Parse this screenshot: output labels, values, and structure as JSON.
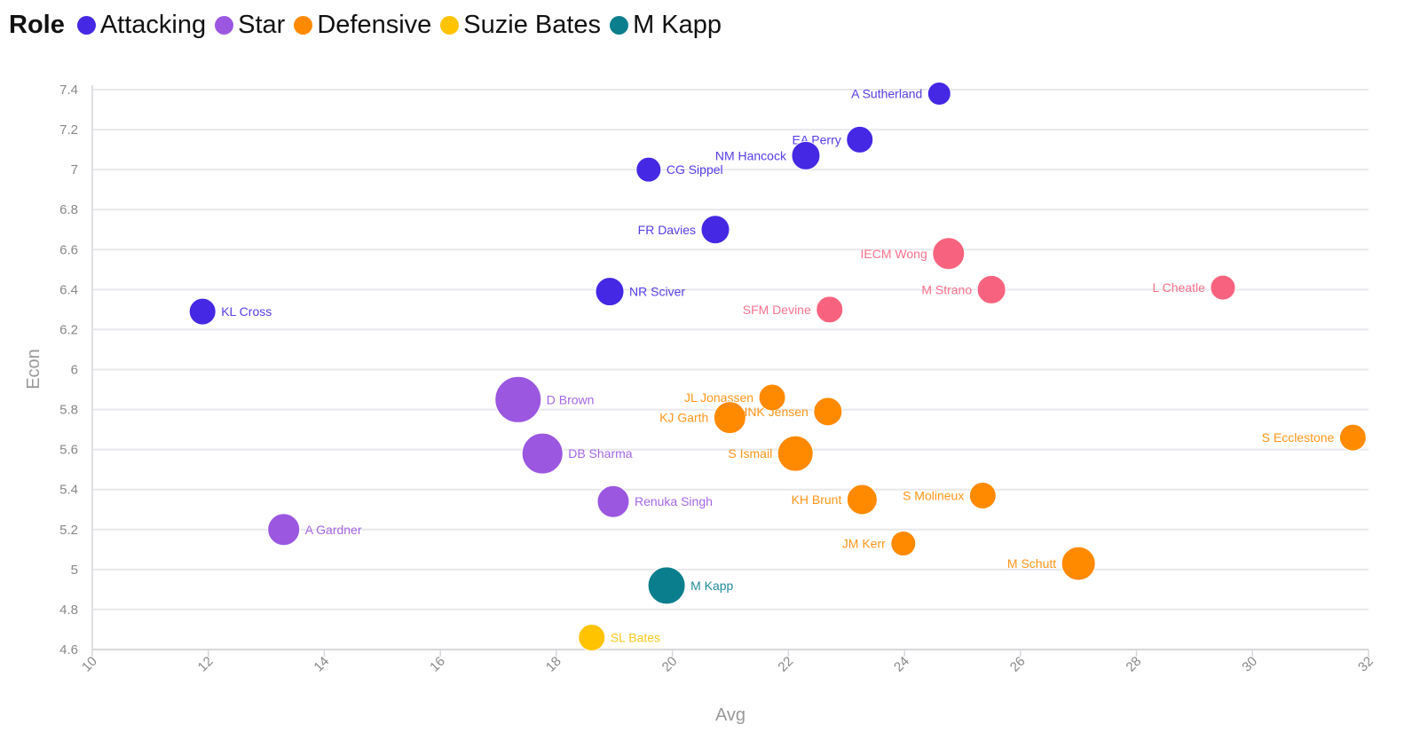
{
  "chart_data": {
    "type": "scatter",
    "title": "",
    "xlabel": "Avg",
    "ylabel": "Econ",
    "xlim": [
      10,
      32
    ],
    "ylim": [
      4.6,
      7.4
    ],
    "xticks": [
      "10",
      "12",
      "14",
      "16",
      "18",
      "20",
      "22",
      "24",
      "26",
      "28",
      "30",
      "32"
    ],
    "yticks": [
      "4.6",
      "4.8",
      "5",
      "5.2",
      "5.4",
      "5.6",
      "5.8",
      "6",
      "6.2",
      "6.4",
      "6.6",
      "6.8",
      "7",
      "7.2",
      "7.4"
    ],
    "grid": "horizontal",
    "legend": {
      "title": "Role",
      "placement": "top-left",
      "entries": [
        {
          "label": "Attacking",
          "color": "#4428e4"
        },
        {
          "label": "Star",
          "color": "#9b57e0"
        },
        {
          "label": "Defensive",
          "color": "#ff8a00"
        },
        {
          "label": "Suzie Bates",
          "color": "#ffc300"
        },
        {
          "label": "M Kapp",
          "color": "#0a7e8c"
        }
      ]
    },
    "other_color": "#f7637f",
    "points": [
      {
        "name": "A Sutherland",
        "x": 24.6,
        "y": 7.38,
        "role": "Attacking",
        "size": 13,
        "label_side": "left"
      },
      {
        "name": "EA Perry",
        "x": 23.23,
        "y": 7.15,
        "role": "Attacking",
        "size": 15,
        "label_side": "left"
      },
      {
        "name": "NM Hancock",
        "x": 22.3,
        "y": 7.07,
        "role": "Attacking",
        "size": 16,
        "label_side": "left"
      },
      {
        "name": "CG Sippel",
        "x": 19.59,
        "y": 7.0,
        "role": "Attacking",
        "size": 14,
        "label_side": "right"
      },
      {
        "name": "FR Davies",
        "x": 20.74,
        "y": 6.7,
        "role": "Attacking",
        "size": 16,
        "label_side": "left"
      },
      {
        "name": "NR Sciver",
        "x": 18.92,
        "y": 6.39,
        "role": "Attacking",
        "size": 16,
        "label_side": "right"
      },
      {
        "name": "KL Cross",
        "x": 11.9,
        "y": 6.29,
        "role": "Attacking",
        "size": 15,
        "label_side": "right"
      },
      {
        "name": "IECM Wong",
        "x": 24.76,
        "y": 6.58,
        "role": "Other",
        "size": 18,
        "label_side": "left"
      },
      {
        "name": "M Strano",
        "x": 25.5,
        "y": 6.4,
        "role": "Other",
        "size": 16,
        "label_side": "left"
      },
      {
        "name": "L Cheatle",
        "x": 29.49,
        "y": 6.41,
        "role": "Other",
        "size": 14,
        "label_side": "left"
      },
      {
        "name": "SFM Devine",
        "x": 22.71,
        "y": 6.3,
        "role": "Other",
        "size": 15,
        "label_side": "left"
      },
      {
        "name": "D Brown",
        "x": 17.34,
        "y": 5.85,
        "role": "Star",
        "size": 26,
        "label_side": "right"
      },
      {
        "name": "DB Sharma",
        "x": 17.76,
        "y": 5.58,
        "role": "Star",
        "size": 23,
        "label_side": "right"
      },
      {
        "name": "Renuka Singh",
        "x": 18.98,
        "y": 5.34,
        "role": "Star",
        "size": 18,
        "label_side": "right"
      },
      {
        "name": "A Gardner",
        "x": 13.3,
        "y": 5.2,
        "role": "Star",
        "size": 18,
        "label_side": "right"
      },
      {
        "name": "M Kapp",
        "x": 19.9,
        "y": 4.92,
        "role": "M Kapp",
        "size": 21,
        "label_side": "right"
      },
      {
        "name": "SL Bates",
        "x": 18.61,
        "y": 4.66,
        "role": "Suzie Bates",
        "size": 15,
        "label_side": "right"
      },
      {
        "name": "JL Jonassen",
        "x": 21.72,
        "y": 5.86,
        "role": "Defensive",
        "size": 15,
        "label_side": "left"
      },
      {
        "name": "KJ Garth",
        "x": 20.99,
        "y": 5.76,
        "role": "Defensive",
        "size": 18,
        "label_side": "left"
      },
      {
        "name": "HNK Jensen",
        "x": 22.68,
        "y": 5.79,
        "role": "Defensive",
        "size": 16,
        "label_side": "left"
      },
      {
        "name": "S Ismail",
        "x": 22.12,
        "y": 5.58,
        "role": "Defensive",
        "size": 20,
        "label_side": "left"
      },
      {
        "name": "S Ecclestone",
        "x": 31.73,
        "y": 5.66,
        "role": "Defensive",
        "size": 15,
        "label_side": "left"
      },
      {
        "name": "S Molineux",
        "x": 25.35,
        "y": 5.37,
        "role": "Defensive",
        "size": 15,
        "label_side": "left"
      },
      {
        "name": "KH Brunt",
        "x": 23.27,
        "y": 5.35,
        "role": "Defensive",
        "size": 17,
        "label_side": "left"
      },
      {
        "name": "JM Kerr",
        "x": 23.98,
        "y": 5.13,
        "role": "Defensive",
        "size": 14,
        "label_side": "left"
      },
      {
        "name": "M Schutt",
        "x": 27.0,
        "y": 5.03,
        "role": "Defensive",
        "size": 19,
        "label_side": "left"
      }
    ]
  }
}
